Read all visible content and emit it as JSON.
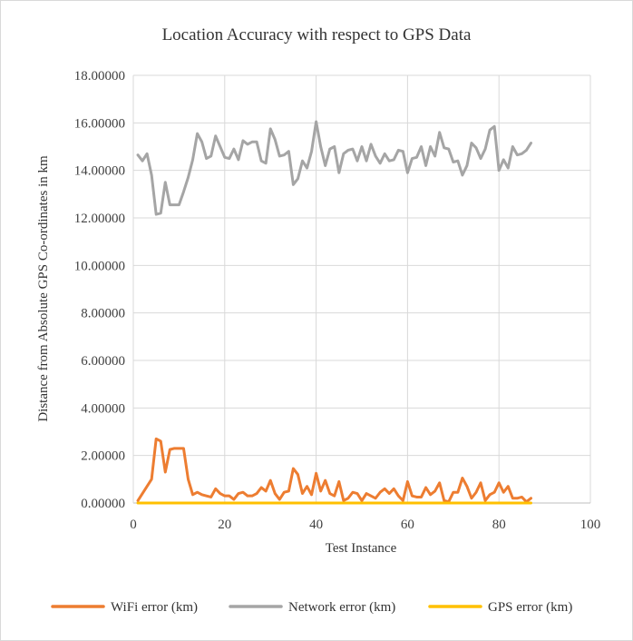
{
  "chart_data": {
    "type": "line",
    "title": "Location Accuracy with respect to GPS Data",
    "xlabel": "Test Instance",
    "ylabel": "Distance from Absolute GPS Co-ordinates in km",
    "xlim": [
      0,
      100
    ],
    "ylim": [
      0,
      18
    ],
    "x_ticks": [
      0,
      20,
      40,
      60,
      80,
      100
    ],
    "x_tick_labels": [
      "0",
      "20",
      "40",
      "60",
      "80",
      "100"
    ],
    "y_ticks": [
      0,
      2,
      4,
      6,
      8,
      10,
      12,
      14,
      16,
      18
    ],
    "y_tick_labels": [
      "0.00000",
      "2.00000",
      "4.00000",
      "6.00000",
      "8.00000",
      "10.00000",
      "12.00000",
      "14.00000",
      "16.00000",
      "18.00000"
    ],
    "grid": true,
    "legend_position": "bottom",
    "x": [
      1,
      2,
      3,
      4,
      5,
      6,
      7,
      8,
      9,
      10,
      11,
      12,
      13,
      14,
      15,
      16,
      17,
      18,
      19,
      20,
      21,
      22,
      23,
      24,
      25,
      26,
      27,
      28,
      29,
      30,
      31,
      32,
      33,
      34,
      35,
      36,
      37,
      38,
      39,
      40,
      41,
      42,
      43,
      44,
      45,
      46,
      47,
      48,
      49,
      50,
      51,
      52,
      53,
      54,
      55,
      56,
      57,
      58,
      59,
      60,
      61,
      62,
      63,
      64,
      65,
      66,
      67,
      68,
      69,
      70,
      71,
      72,
      73,
      74,
      75,
      76,
      77,
      78,
      79,
      80,
      81,
      82,
      83,
      84,
      85,
      86,
      87
    ],
    "series": [
      {
        "name": "WiFi error (km)",
        "color": "#ed7d31",
        "values": [
          0.1,
          0.4,
          0.7,
          1.0,
          2.7,
          2.6,
          1.3,
          2.25,
          2.3,
          2.3,
          2.3,
          1.0,
          0.35,
          0.45,
          0.35,
          0.3,
          0.25,
          0.6,
          0.4,
          0.3,
          0.3,
          0.15,
          0.4,
          0.45,
          0.3,
          0.3,
          0.4,
          0.65,
          0.5,
          0.95,
          0.4,
          0.15,
          0.45,
          0.5,
          1.45,
          1.2,
          0.4,
          0.7,
          0.35,
          1.25,
          0.5,
          0.95,
          0.4,
          0.3,
          0.9,
          0.1,
          0.2,
          0.45,
          0.4,
          0.1,
          0.4,
          0.3,
          0.2,
          0.45,
          0.6,
          0.4,
          0.6,
          0.3,
          0.1,
          0.9,
          0.3,
          0.25,
          0.25,
          0.65,
          0.35,
          0.5,
          0.85,
          0.1,
          0.05,
          0.45,
          0.45,
          1.05,
          0.7,
          0.2,
          0.45,
          0.85,
          0.1,
          0.35,
          0.45,
          0.85,
          0.45,
          0.7,
          0.2,
          0.2,
          0.25,
          0.05,
          0.2
        ]
      },
      {
        "name": "Network error (km)",
        "color": "#a5a5a5",
        "values": [
          14.65,
          14.4,
          14.7,
          13.8,
          12.15,
          12.2,
          13.5,
          12.55,
          12.55,
          12.55,
          13.1,
          13.7,
          14.45,
          15.55,
          15.2,
          14.5,
          14.6,
          15.45,
          15.0,
          14.55,
          14.5,
          14.9,
          14.45,
          15.25,
          15.1,
          15.2,
          15.2,
          14.4,
          14.3,
          15.75,
          15.3,
          14.6,
          14.65,
          14.8,
          13.4,
          13.65,
          14.4,
          14.1,
          14.8,
          16.05,
          15.0,
          14.2,
          14.9,
          15.0,
          13.9,
          14.7,
          14.85,
          14.9,
          14.4,
          15.0,
          14.4,
          15.1,
          14.6,
          14.3,
          14.7,
          14.4,
          14.45,
          14.85,
          14.8,
          13.9,
          14.5,
          14.55,
          15.0,
          14.2,
          15.0,
          14.6,
          15.6,
          14.95,
          14.9,
          14.35,
          14.4,
          13.8,
          14.2,
          15.15,
          14.95,
          14.5,
          14.9,
          15.7,
          15.85,
          14.0,
          14.45,
          14.1,
          15.0,
          14.65,
          14.7,
          14.85,
          15.15
        ]
      },
      {
        "name": "GPS error (km)",
        "color": "#ffc000",
        "values": [
          0,
          0,
          0,
          0,
          0,
          0,
          0,
          0,
          0,
          0,
          0,
          0,
          0,
          0,
          0,
          0,
          0,
          0,
          0,
          0,
          0,
          0,
          0,
          0,
          0,
          0,
          0,
          0,
          0,
          0,
          0,
          0,
          0,
          0,
          0,
          0,
          0,
          0,
          0,
          0,
          0,
          0,
          0,
          0,
          0,
          0,
          0,
          0,
          0,
          0,
          0,
          0,
          0,
          0,
          0,
          0,
          0,
          0,
          0,
          0,
          0,
          0,
          0,
          0,
          0,
          0,
          0,
          0,
          0,
          0,
          0,
          0,
          0,
          0,
          0,
          0,
          0,
          0,
          0,
          0,
          0,
          0,
          0,
          0,
          0,
          0,
          0
        ]
      }
    ]
  }
}
